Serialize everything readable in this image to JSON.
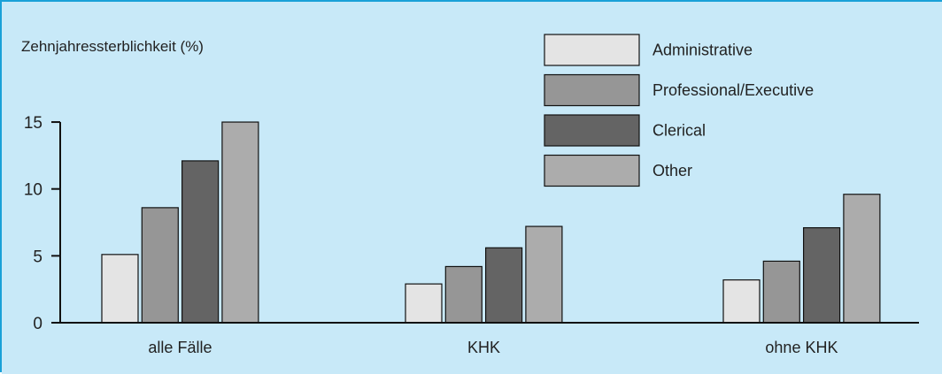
{
  "colors": {
    "panel_bg": "#c8e9f8",
    "border": "#1aa1d8",
    "axis": "#111111",
    "bar_stroke": "#111111"
  },
  "chart_data": {
    "type": "bar",
    "ylabel": "Zehnjahressterblichkeit (%)",
    "categories": [
      "alle Fälle",
      "KHK",
      "ohne KHK"
    ],
    "yticks": [
      0,
      5,
      10,
      15
    ],
    "ylim": [
      0,
      15
    ],
    "legend_position": "top-right",
    "series": [
      {
        "name": "Administrative",
        "color": "#e4e4e4",
        "values": [
          5.1,
          2.9,
          3.2
        ]
      },
      {
        "name": "Professional/Executive",
        "color": "#969696",
        "values": [
          8.6,
          4.2,
          4.6
        ]
      },
      {
        "name": "Clerical",
        "color": "#646464",
        "values": [
          12.1,
          5.6,
          7.1
        ]
      },
      {
        "name": "Other",
        "color": "#acacac",
        "values": [
          15.0,
          7.2,
          9.6
        ]
      }
    ]
  }
}
